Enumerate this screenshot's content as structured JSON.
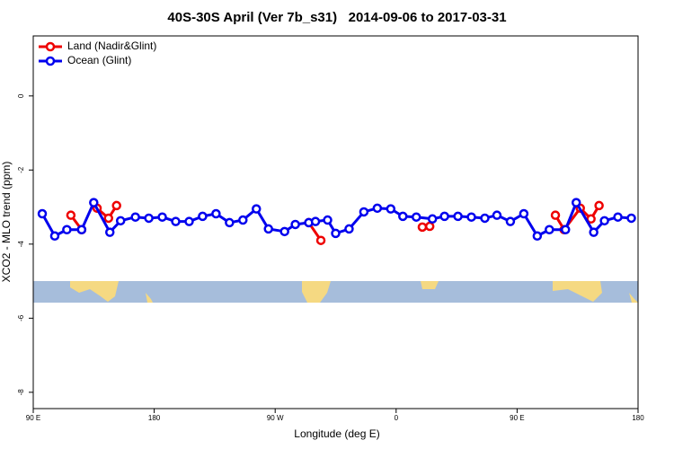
{
  "chart_data": {
    "type": "line",
    "title": "40S-30S April (Ver 7b_s31)   2014-09-06 to 2017-03-31",
    "xlabel": "Longitude (deg E)",
    "ylabel": "XCO2 - MLO trend (ppm)",
    "xlim": [
      90,
      540
    ],
    "ylim": [
      -8.44,
      1.62
    ],
    "xticks": [
      {
        "value": 90,
        "label": "90 E"
      },
      {
        "value": 180,
        "label": "180"
      },
      {
        "value": 270,
        "label": "90 W"
      },
      {
        "value": 360,
        "label": "0"
      },
      {
        "value": 450,
        "label": "90 E"
      },
      {
        "value": 540,
        "label": "180"
      }
    ],
    "yticks": [
      0,
      -2,
      -4,
      -6,
      -8
    ],
    "legend": "top-left",
    "series": [
      {
        "name": "Land (Nadir&Glint)",
        "color": "#ee0000",
        "x": [
          118,
          126,
          null,
          137.5,
          146,
          152,
          null,
          295,
          304,
          null,
          379.5,
          385,
          null,
          478.5,
          485,
          497,
          505,
          511
        ],
        "values": [
          -3.22,
          -3.61,
          null,
          -3.03,
          -3.3,
          -2.96,
          null,
          -3.42,
          -3.9,
          null,
          -3.54,
          -3.52,
          null,
          -3.22,
          -3.61,
          -3.03,
          -3.32,
          -2.96
        ]
      },
      {
        "name": "Ocean (Glint)",
        "color": "#0000ee",
        "x": [
          96.7,
          106,
          115,
          126,
          135,
          147,
          155,
          166,
          176,
          186,
          196,
          206,
          216,
          226,
          236,
          246,
          256,
          265,
          277,
          285,
          295,
          300,
          309,
          315,
          325,
          336,
          346,
          356,
          365,
          375,
          387,
          396,
          406,
          416,
          426,
          435,
          445,
          455,
          465,
          474,
          486,
          494,
          507,
          515,
          525,
          535
        ],
        "values": [
          -3.18,
          -3.78,
          -3.61,
          -3.61,
          -2.88,
          -3.68,
          -3.37,
          -3.27,
          -3.3,
          -3.27,
          -3.39,
          -3.39,
          -3.25,
          -3.18,
          -3.42,
          -3.35,
          -3.05,
          -3.59,
          -3.66,
          -3.47,
          -3.42,
          -3.39,
          -3.35,
          -3.71,
          -3.59,
          -3.13,
          -3.03,
          -3.05,
          -3.25,
          -3.27,
          -3.32,
          -3.25,
          -3.25,
          -3.27,
          -3.3,
          -3.22,
          -3.39,
          -3.18,
          -3.78,
          -3.61,
          -3.61,
          -2.88,
          -3.68,
          -3.37,
          -3.27,
          -3.3
        ]
      }
    ]
  }
}
